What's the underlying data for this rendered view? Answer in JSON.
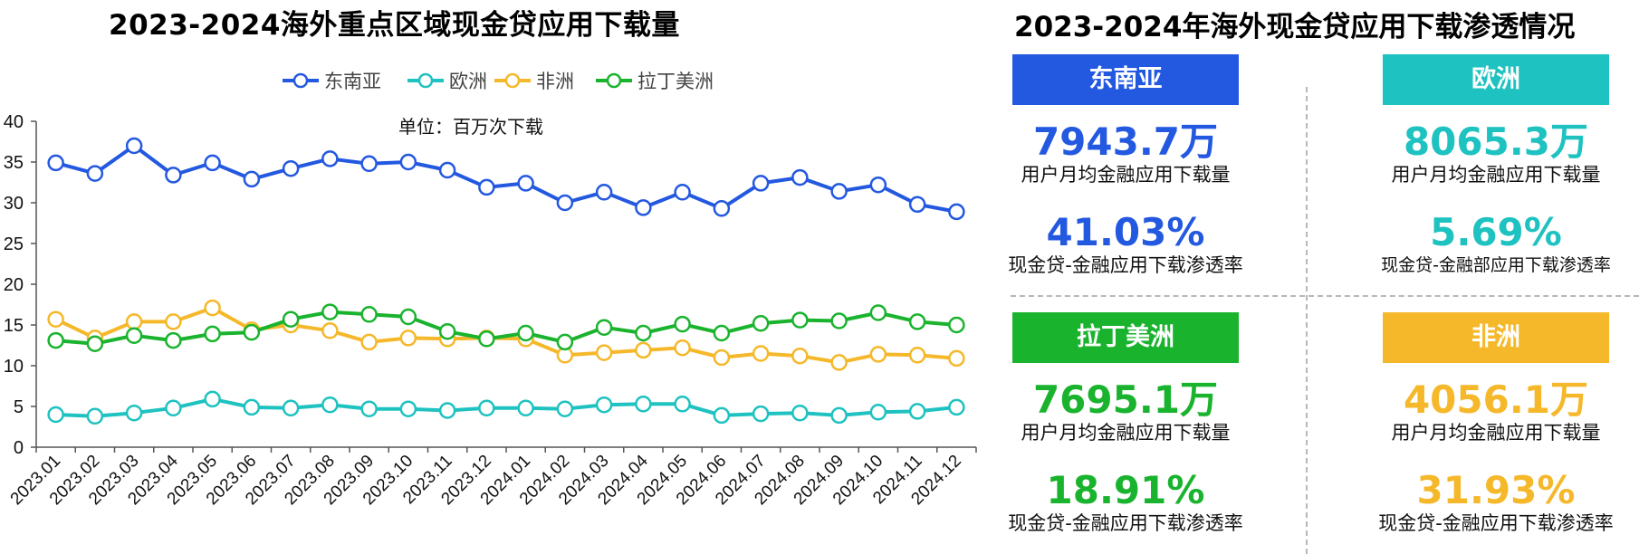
{
  "left_title": "2023-2024海外重点区域现金贷应用下载量",
  "right_title": "2023-2024年海外现金贷应用下载渗透情况",
  "colors": {
    "sea": "#2358e0",
    "eu": "#1ec2c0",
    "af": "#f5b82a",
    "la": "#1ab32e"
  },
  "chart_data": {
    "type": "line",
    "unit_note": "单位：百万次下载",
    "ylim": [
      0,
      40
    ],
    "yticks": [
      "0",
      "5",
      "10",
      "15",
      "20",
      "25",
      "30",
      "35",
      "40"
    ],
    "legend": "top-center",
    "categories": [
      "2023.01",
      "2023.02",
      "2023.03",
      "2023.04",
      "2023.05",
      "2023.06",
      "2023.07",
      "2023.08",
      "2023.09",
      "2023.10",
      "2023.11",
      "2023.12",
      "2024.01",
      "2024.02",
      "2024.03",
      "2024.04",
      "2024.05",
      "2024.06",
      "2024.07",
      "2024.08",
      "2024.09",
      "2024.10",
      "2024.11",
      "2024.12"
    ],
    "series": [
      {
        "name": "东南亚",
        "color": "#2358e0",
        "values": [
          34.9,
          33.6,
          37.0,
          33.4,
          34.9,
          32.9,
          34.2,
          35.4,
          34.8,
          35.0,
          34.0,
          31.9,
          32.4,
          30.0,
          31.3,
          29.4,
          31.3,
          29.3,
          32.4,
          33.1,
          31.4,
          32.2,
          29.8,
          28.9
        ]
      },
      {
        "name": "欧洲",
        "color": "#1ec2c0",
        "values": [
          4.0,
          3.8,
          4.2,
          4.8,
          5.9,
          4.9,
          4.8,
          5.2,
          4.7,
          4.7,
          4.5,
          4.8,
          4.8,
          4.7,
          5.2,
          5.3,
          5.3,
          3.9,
          4.1,
          4.2,
          3.9,
          4.3,
          4.4,
          4.9
        ]
      },
      {
        "name": "非洲",
        "color": "#f5b82a",
        "values": [
          15.7,
          13.4,
          15.4,
          15.4,
          17.1,
          14.4,
          15.0,
          14.3,
          12.9,
          13.4,
          13.3,
          13.4,
          13.3,
          11.3,
          11.6,
          11.9,
          12.2,
          11.0,
          11.5,
          11.2,
          10.4,
          11.4,
          11.3,
          10.9
        ]
      },
      {
        "name": "拉丁美洲",
        "color": "#1ab32e",
        "values": [
          13.1,
          12.7,
          13.7,
          13.1,
          13.9,
          14.1,
          15.7,
          16.6,
          16.3,
          16.0,
          14.2,
          13.3,
          14.0,
          12.9,
          14.7,
          14.0,
          15.1,
          14.0,
          15.2,
          15.6,
          15.5,
          16.5,
          15.4,
          15.0
        ]
      }
    ]
  },
  "panels": {
    "sea": {
      "name": "东南亚",
      "downloads": "7943.7万",
      "downloads_label": "用户月均金融应用下载量",
      "rate": "41.03%",
      "rate_label": "现金贷-金融应用下载渗透率"
    },
    "eu": {
      "name": "欧洲",
      "downloads": "8065.3万",
      "downloads_label": "用户月均金融应用下载量",
      "rate": "5.69%",
      "rate_label": "现金贷-金融部应用下载渗透率"
    },
    "la": {
      "name": "拉丁美洲",
      "downloads": "7695.1万",
      "downloads_label": "用户月均金融应用下载量",
      "rate": "18.91%",
      "rate_label": "现金贷-金融应用下载渗透率"
    },
    "af": {
      "name": "非洲",
      "downloads": "4056.1万",
      "downloads_label": "用户月均金融应用下载量",
      "rate": "31.93%",
      "rate_label": "现金贷-金融应用下载渗透率"
    }
  }
}
